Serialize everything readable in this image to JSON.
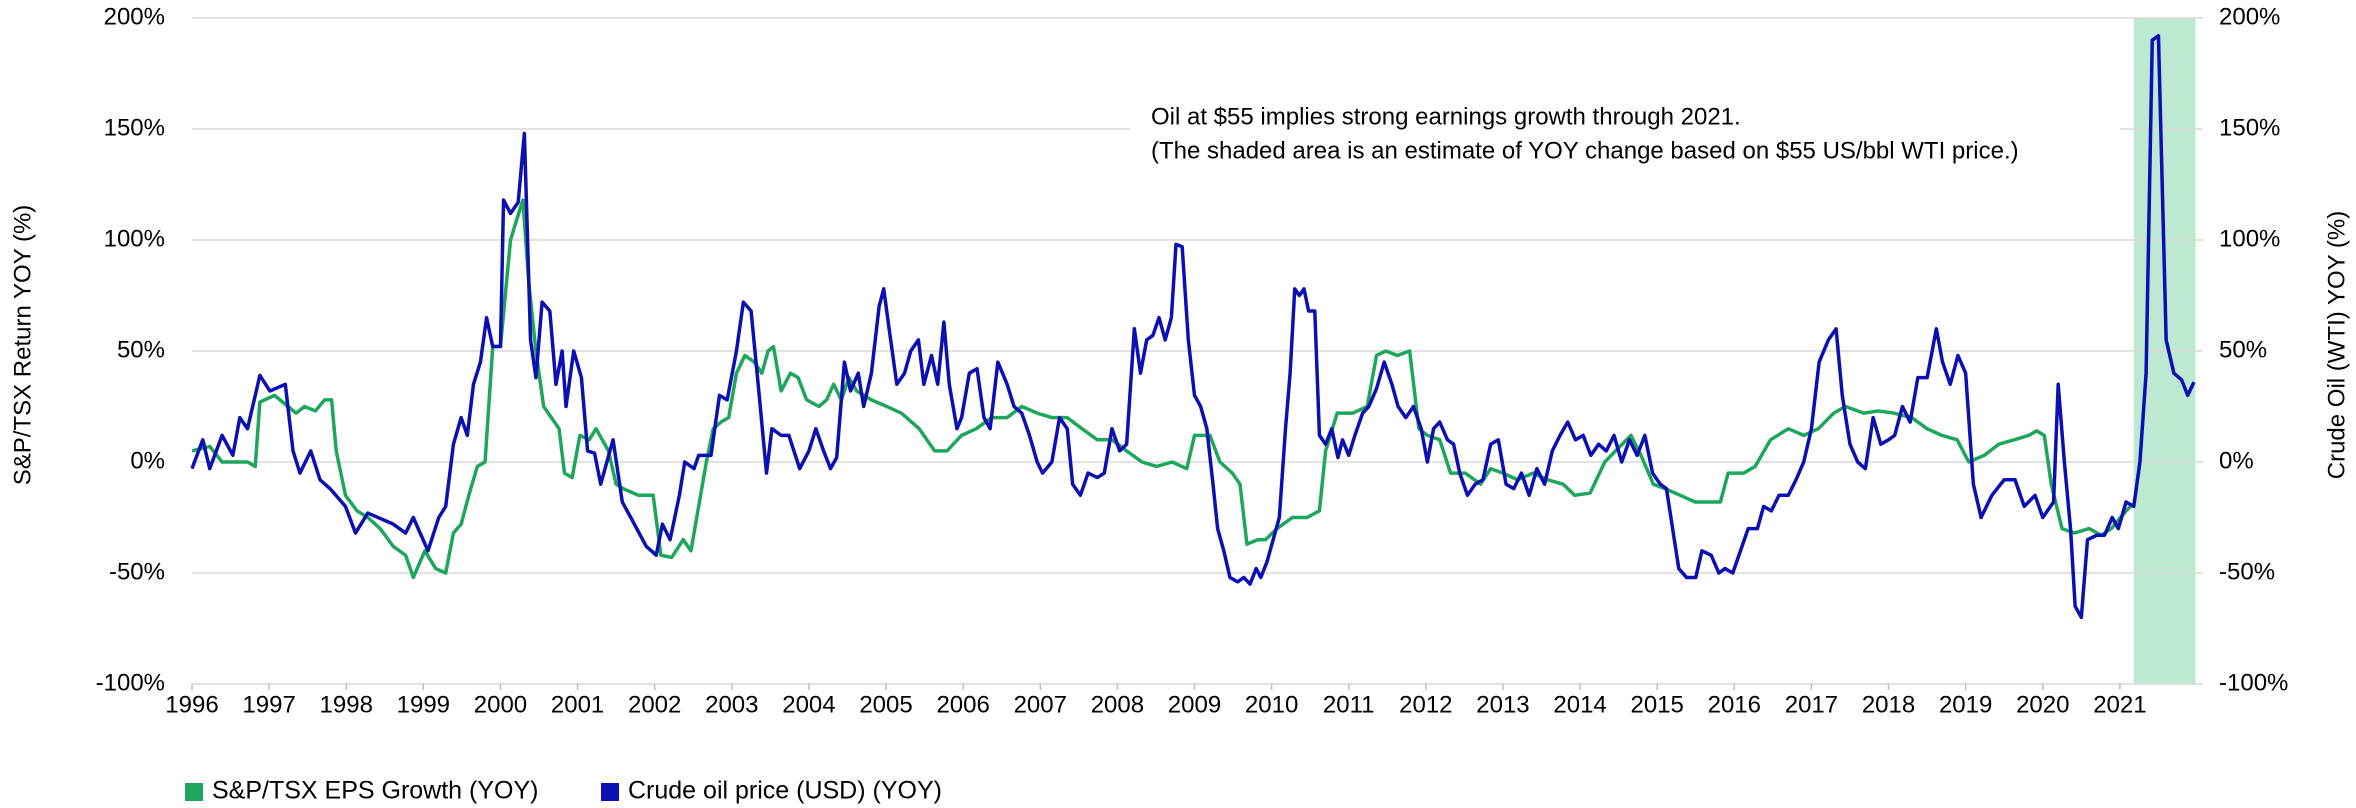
{
  "chart_data": {
    "type": "line",
    "y_label": "S&P/TSX Return YOY (%)",
    "y2_label": "Crude Oil (WTI)  YOY (%)",
    "annotation": [
      "Oil at $55 implies strong earnings growth through 2021.",
      "(The shaded area is an estimate of YOY change based on $55 US/bbl WTI price.)"
    ],
    "shaded_region": {
      "x": [
        2021.18,
        2021.98
      ],
      "color": "#bde9d2"
    },
    "xlim": [
      1996,
      2022
    ],
    "xticks": [
      1996,
      1997,
      1998,
      1999,
      2000,
      2001,
      2002,
      2003,
      2004,
      2005,
      2006,
      2007,
      2008,
      2009,
      2010,
      2011,
      2012,
      2013,
      2014,
      2015,
      2016,
      2017,
      2018,
      2019,
      2020,
      2021
    ],
    "ylim": [
      -100,
      200
    ],
    "yticks": [
      {
        "value": -100,
        "label": "-100%"
      },
      {
        "value": -50,
        "label": "-50%"
      },
      {
        "value": 0,
        "label": "0%"
      },
      {
        "value": 50,
        "label": "50%"
      },
      {
        "value": 100,
        "label": "100%"
      },
      {
        "value": 150,
        "label": "150%"
      },
      {
        "value": 200,
        "label": "200%"
      }
    ],
    "y2lim": [
      -100,
      200
    ],
    "y2ticks": [
      {
        "value": -100,
        "label": "-100%"
      },
      {
        "value": -50,
        "label": "-50%"
      },
      {
        "value": 0,
        "label": "0%"
      },
      {
        "value": 50,
        "label": "50%"
      },
      {
        "value": 100,
        "label": "100%"
      },
      {
        "value": 150,
        "label": "150%"
      },
      {
        "value": 200,
        "label": "200%"
      }
    ],
    "grid": true,
    "legend": "bottom-left",
    "series": [
      {
        "name": "S&P/TSX EPS Growth (YOY)",
        "color": "#1ea65a",
        "x": [
          1996.0,
          1996.23,
          1996.39,
          1996.72,
          1996.82,
          1996.88,
          1997.07,
          1997.35,
          1997.46,
          1997.6,
          1997.72,
          1997.81,
          1997.87,
          1997.99,
          1998.14,
          1998.28,
          1998.44,
          1998.61,
          1998.77,
          1998.87,
          1999.02,
          1999.16,
          1999.29,
          1999.39,
          1999.49,
          1999.59,
          1999.7,
          1999.8,
          1999.9,
          2000.0,
          2000.13,
          2000.29,
          2000.37,
          2000.46,
          2000.56,
          2000.66,
          2000.76,
          2000.83,
          2000.93,
          2001.03,
          2001.15,
          2001.24,
          2001.4,
          2001.5,
          2001.59,
          2001.79,
          2001.98,
          2002.08,
          2002.22,
          2002.37,
          2002.47,
          2002.57,
          2002.67,
          2002.76,
          2002.86,
          2002.96,
          2003.06,
          2003.17,
          2003.29,
          2003.39,
          2003.47,
          2003.54,
          2003.64,
          2003.76,
          2003.86,
          2003.97,
          2004.13,
          2004.23,
          2004.32,
          2004.42,
          2004.52,
          2004.62,
          2004.81,
          2005.01,
          2005.2,
          2005.43,
          2005.63,
          2005.79,
          2005.98,
          2006.17,
          2006.37,
          2006.57,
          2006.76,
          2006.96,
          2007.15,
          2007.35,
          2007.54,
          2007.74,
          2007.93,
          2008.12,
          2008.32,
          2008.51,
          2008.71,
          2008.9,
          2009.0,
          2009.2,
          2009.33,
          2009.49,
          2009.59,
          2009.68,
          2009.82,
          2009.92,
          2010.07,
          2010.27,
          2010.46,
          2010.62,
          2010.7,
          2010.85,
          2011.05,
          2011.24,
          2011.36,
          2011.48,
          2011.63,
          2011.79,
          2011.91,
          2012.02,
          2012.18,
          2012.32,
          2012.51,
          2012.71,
          2012.84,
          2013.0,
          2013.19,
          2013.39,
          2013.58,
          2013.78,
          2013.93,
          2014.13,
          2014.32,
          2014.46,
          2014.66,
          2014.79,
          2014.95,
          2015.1,
          2015.3,
          2015.49,
          2015.82,
          2015.92,
          2016.12,
          2016.27,
          2016.47,
          2016.7,
          2016.9,
          2017.09,
          2017.29,
          2017.44,
          2017.68,
          2017.87,
          2018.07,
          2018.3,
          2018.5,
          2018.69,
          2018.89,
          2019.04,
          2019.24,
          2019.43,
          2019.63,
          2019.82,
          2019.92,
          2020.02,
          2020.11,
          2020.25,
          2020.41,
          2020.6,
          2020.76,
          2020.89,
          2021.08,
          2021.14
        ],
        "values": [
          5,
          7,
          0,
          0,
          -2,
          27,
          30,
          22,
          25,
          23,
          28,
          28,
          5,
          -15,
          -22,
          -25,
          -30,
          -38,
          -42,
          -52,
          -40,
          -48,
          -50,
          -32,
          -28,
          -15,
          -2,
          0,
          52,
          52,
          100,
          118,
          80,
          50,
          25,
          20,
          15,
          -5,
          -7,
          12,
          10,
          15,
          5,
          -10,
          -12,
          -15,
          -15,
          -42,
          -43,
          -35,
          -40,
          -20,
          0,
          15,
          18,
          20,
          40,
          48,
          45,
          40,
          50,
          52,
          32,
          40,
          38,
          28,
          25,
          28,
          35,
          28,
          38,
          32,
          28,
          25,
          22,
          15,
          5,
          5,
          12,
          15,
          20,
          20,
          25,
          22,
          20,
          20,
          15,
          10,
          10,
          5,
          0,
          -2,
          0,
          -3,
          12,
          12,
          0,
          -5,
          -10,
          -37,
          -35,
          -35,
          -30,
          -25,
          -25,
          -22,
          5,
          22,
          22,
          25,
          48,
          50,
          48,
          50,
          15,
          12,
          10,
          -5,
          -5,
          -10,
          -3,
          -5,
          -8,
          -5,
          -8,
          -10,
          -15,
          -14,
          0,
          5,
          12,
          3,
          -10,
          -12,
          -15,
          -18,
          -18,
          -5,
          -5,
          -2,
          10,
          15,
          12,
          15,
          22,
          25,
          22,
          23,
          22,
          20,
          15,
          12,
          10,
          0,
          3,
          8,
          10,
          12,
          14,
          12,
          -10,
          -30,
          -32,
          -30,
          -33,
          -30,
          -22,
          -20
        ]
      },
      {
        "name": "Crude oil price (USD) (YOY)",
        "color": "#0a10b4",
        "axis": "y2",
        "x": [
          1996.0,
          1996.14,
          1996.23,
          1996.39,
          1996.53,
          1996.62,
          1996.72,
          1996.88,
          1997.01,
          1997.21,
          1997.31,
          1997.4,
          1997.54,
          1997.66,
          1997.79,
          1997.99,
          1998.12,
          1998.28,
          1998.61,
          1998.77,
          1998.87,
          1999.06,
          1999.2,
          1999.29,
          1999.39,
          1999.49,
          1999.57,
          1999.65,
          1999.74,
          1999.82,
          1999.9,
          2000.0,
          2000.04,
          2000.13,
          2000.23,
          2000.31,
          2000.39,
          2000.46,
          2000.54,
          2000.64,
          2000.72,
          2000.8,
          2000.85,
          2000.95,
          2001.05,
          2001.13,
          2001.22,
          2001.3,
          2001.46,
          2001.58,
          2001.69,
          2001.89,
          2002.02,
          2002.1,
          2002.2,
          2002.32,
          2002.39,
          2002.51,
          2002.57,
          2002.73,
          2002.84,
          2002.94,
          2003.06,
          2003.15,
          2003.25,
          2003.35,
          2003.45,
          2003.52,
          2003.64,
          2003.74,
          2003.88,
          2004.0,
          2004.09,
          2004.19,
          2004.28,
          2004.36,
          2004.46,
          2004.54,
          2004.64,
          2004.71,
          2004.81,
          2004.91,
          2004.97,
          2005.04,
          2005.14,
          2005.24,
          2005.32,
          2005.42,
          2005.49,
          2005.59,
          2005.67,
          2005.75,
          2005.82,
          2005.92,
          2005.98,
          2006.08,
          2006.18,
          2006.27,
          2006.35,
          2006.45,
          2006.57,
          2006.66,
          2006.76,
          2006.86,
          2006.96,
          2007.03,
          2007.15,
          2007.25,
          2007.35,
          2007.42,
          2007.52,
          2007.62,
          2007.74,
          2007.83,
          2007.93,
          2008.03,
          2008.12,
          2008.22,
          2008.3,
          2008.38,
          2008.46,
          2008.54,
          2008.62,
          2008.7,
          2008.76,
          2008.84,
          2008.92,
          2009.0,
          2009.08,
          2009.16,
          2009.24,
          2009.3,
          2009.38,
          2009.46,
          2009.56,
          2009.64,
          2009.72,
          2009.8,
          2009.86,
          2009.94,
          2010.02,
          2010.1,
          2010.18,
          2010.24,
          2010.3,
          2010.36,
          2010.42,
          2010.48,
          2010.56,
          2010.62,
          2010.7,
          2010.78,
          2010.86,
          2010.92,
          2011.0,
          2011.08,
          2011.18,
          2011.26,
          2011.36,
          2011.46,
          2011.56,
          2011.64,
          2011.74,
          2011.84,
          2011.94,
          2012.02,
          2012.1,
          2012.18,
          2012.28,
          2012.36,
          2012.44,
          2012.54,
          2012.64,
          2012.74,
          2012.84,
          2012.94,
          2013.04,
          2013.14,
          2013.24,
          2013.34,
          2013.44,
          2013.54,
          2013.64,
          2013.74,
          2013.84,
          2013.94,
          2014.04,
          2014.14,
          2014.24,
          2014.34,
          2014.44,
          2014.54,
          2014.64,
          2014.74,
          2014.84,
          2014.94,
          2015.04,
          2015.12,
          2015.2,
          2015.28,
          2015.38,
          2015.5,
          2015.58,
          2015.7,
          2015.8,
          2015.88,
          2015.98,
          2016.06,
          2016.18,
          2016.3,
          2016.38,
          2016.48,
          2016.58,
          2016.7,
          2016.8,
          2016.9,
          2017.0,
          2017.1,
          2017.22,
          2017.32,
          2017.4,
          2017.5,
          2017.6,
          2017.7,
          2017.8,
          2017.9,
          2018.0,
          2018.08,
          2018.18,
          2018.28,
          2018.38,
          2018.5,
          2018.62,
          2018.7,
          2018.8,
          2018.9,
          2019.0,
          2019.1,
          2019.2,
          2019.34,
          2019.5,
          2019.64,
          2019.76,
          2019.9,
          2020.0,
          2020.14,
          2020.2,
          2020.28,
          2020.36,
          2020.42,
          2020.5,
          2020.58,
          2020.7,
          2020.8,
          2020.9,
          2020.98,
          2021.08,
          2021.18,
          2021.26,
          2021.34,
          2021.42,
          2021.5,
          2021.6,
          2021.7,
          2021.8,
          2021.88,
          2021.96
        ],
        "values": [
          -3,
          10,
          -3,
          12,
          3,
          20,
          15,
          39,
          32,
          35,
          5,
          -5,
          5,
          -8,
          -12,
          -20,
          -32,
          -23,
          -28,
          -32,
          -25,
          -40,
          -25,
          -20,
          8,
          20,
          12,
          35,
          45,
          65,
          52,
          52,
          118,
          112,
          117,
          148,
          55,
          38,
          72,
          68,
          35,
          50,
          25,
          50,
          38,
          5,
          4,
          -10,
          10,
          -18,
          -25,
          -38,
          -42,
          -28,
          -35,
          -15,
          0,
          -3,
          3,
          3,
          30,
          28,
          50,
          72,
          68,
          32,
          -5,
          15,
          12,
          12,
          -3,
          5,
          15,
          5,
          -3,
          2,
          45,
          32,
          40,
          25,
          40,
          70,
          78,
          60,
          35,
          40,
          50,
          55,
          35,
          48,
          35,
          63,
          35,
          15,
          20,
          40,
          42,
          20,
          15,
          45,
          35,
          25,
          22,
          12,
          0,
          -5,
          0,
          20,
          15,
          -10,
          -15,
          -5,
          -7,
          -5,
          15,
          5,
          8,
          60,
          40,
          55,
          57,
          65,
          55,
          65,
          98,
          97,
          55,
          30,
          25,
          15,
          -10,
          -30,
          -40,
          -52,
          -54,
          -52,
          -55,
          -48,
          -52,
          -45,
          -35,
          -25,
          15,
          40,
          78,
          75,
          78,
          68,
          68,
          12,
          8,
          15,
          2,
          10,
          3,
          12,
          22,
          25,
          33,
          45,
          35,
          25,
          20,
          25,
          15,
          0,
          15,
          18,
          10,
          8,
          -5,
          -15,
          -10,
          -8,
          8,
          10,
          -10,
          -12,
          -5,
          -15,
          -3,
          -10,
          5,
          12,
          18,
          10,
          12,
          3,
          8,
          5,
          12,
          0,
          10,
          3,
          12,
          -5,
          -10,
          -12,
          -30,
          -48,
          -52,
          -52,
          -40,
          -42,
          -50,
          -48,
          -50,
          -42,
          -30,
          -30,
          -20,
          -22,
          -15,
          -15,
          -8,
          0,
          15,
          45,
          55,
          60,
          30,
          8,
          0,
          -3,
          20,
          8,
          10,
          12,
          25,
          18,
          38,
          38,
          60,
          45,
          35,
          48,
          40,
          -10,
          -25,
          -15,
          -8,
          -8,
          -20,
          -15,
          -25,
          -18,
          35,
          0,
          -30,
          -65,
          -70,
          -35,
          -33,
          -33,
          -25,
          -30,
          -18,
          -20,
          0,
          40,
          190,
          192,
          55,
          40,
          37,
          30,
          36
        ]
      }
    ]
  }
}
